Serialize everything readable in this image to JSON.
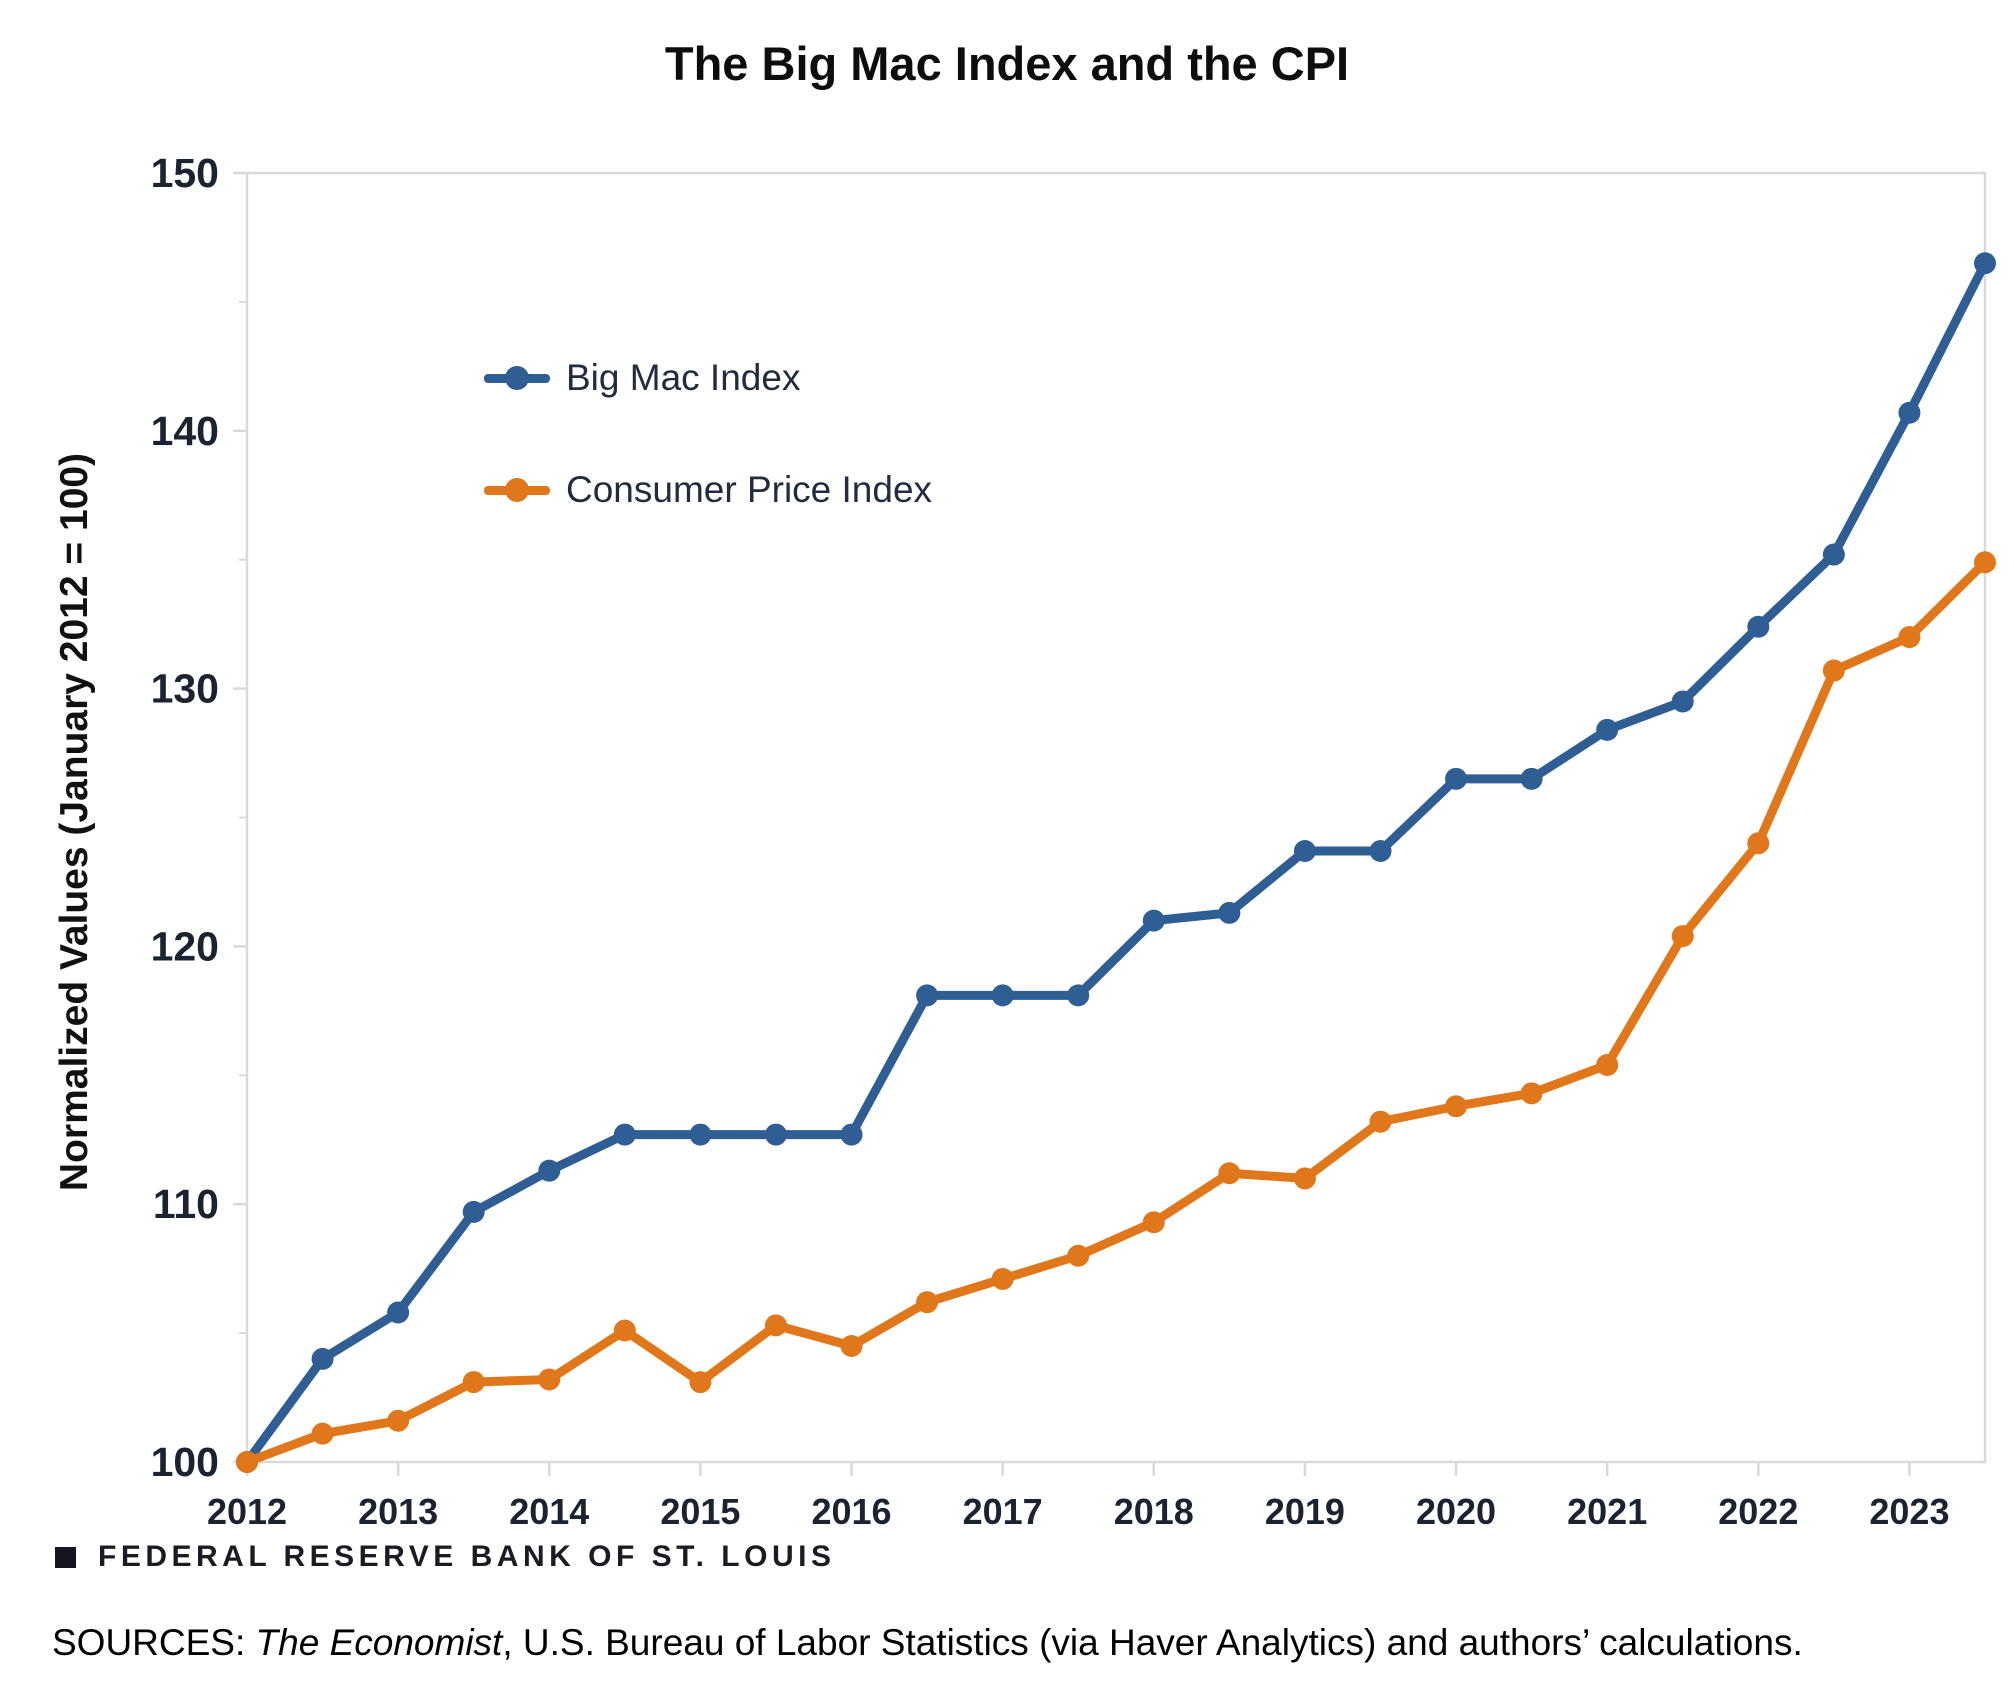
{
  "page_title": "The Big Mac Index and the CPI",
  "footer": {
    "brand": "FEDERAL RESERVE BANK OF ST. LOUIS"
  },
  "sources": {
    "prefix": "SOURCES: ",
    "italic": "The Economist",
    "rest": ", U.S. Bureau of Labor Statistics (via Haver Analytics) and authors’ calculations."
  },
  "colors": {
    "big_mac_blue": "#2E5E94",
    "cpi_orange": "#E0771B",
    "axis_gray": "#D9D9D9",
    "tick_text": "#1c2330"
  },
  "chart_data": {
    "type": "line",
    "title": "The Big Mac Index and the CPI",
    "xlabel": "",
    "ylabel": "Normalized Values (January 2012 = 100)",
    "xlim": [
      2012,
      2023.5
    ],
    "ylim": [
      100,
      150
    ],
    "grid": false,
    "legend_position": "upper-left",
    "x_ticks": [
      2012,
      2013,
      2014,
      2015,
      2016,
      2017,
      2018,
      2019,
      2020,
      2021,
      2022,
      2023
    ],
    "y_ticks": [
      100,
      110,
      120,
      130,
      140,
      150
    ],
    "y_minor_ticks": [
      105,
      115,
      125,
      135,
      145
    ],
    "x": [
      2012,
      2012.5,
      2013,
      2013.5,
      2014,
      2014.5,
      2015,
      2015.5,
      2016,
      2016.5,
      2017,
      2017.5,
      2018,
      2018.5,
      2019,
      2019.5,
      2020,
      2020.5,
      2021,
      2021.5,
      2022,
      2022.5,
      2023,
      2023.5
    ],
    "series": [
      {
        "name": "Big Mac Index",
        "color": "#2E5E94",
        "values": [
          100,
          104.0,
          105.8,
          109.7,
          111.3,
          112.7,
          112.7,
          112.7,
          112.7,
          118.1,
          118.1,
          118.1,
          121.0,
          121.3,
          123.7,
          123.7,
          126.5,
          126.5,
          128.4,
          129.5,
          132.4,
          135.2,
          140.7,
          146.5
        ]
      },
      {
        "name": "Consumer Price Index",
        "color": "#E0771B",
        "values": [
          100,
          101.1,
          101.6,
          103.1,
          103.2,
          105.1,
          103.1,
          105.3,
          104.5,
          106.2,
          107.1,
          108.0,
          109.3,
          111.2,
          111.0,
          113.2,
          113.8,
          114.3,
          115.4,
          120.4,
          124.0,
          130.7,
          132.0,
          134.9
        ]
      }
    ]
  }
}
